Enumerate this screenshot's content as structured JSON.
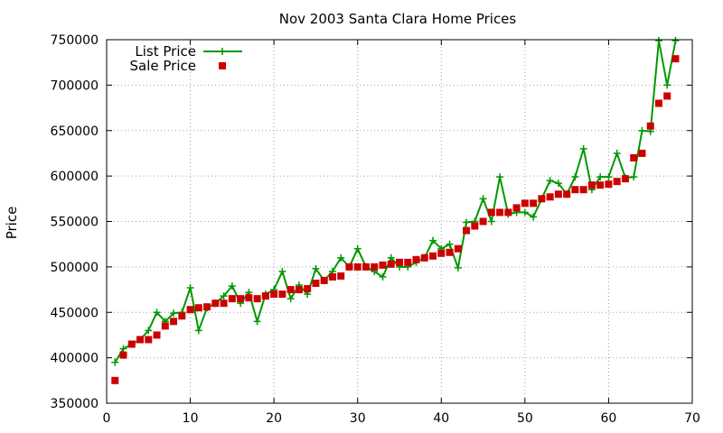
{
  "chart_data": {
    "type": "line",
    "title": "Nov 2003 Santa Clara Home Prices",
    "xlabel": "",
    "ylabel": "Price",
    "xlim": [
      0,
      70
    ],
    "ylim": [
      350000,
      750000
    ],
    "xticks": [
      0,
      10,
      20,
      30,
      40,
      50,
      60,
      70
    ],
    "yticks": [
      350000,
      400000,
      450000,
      500000,
      550000,
      600000,
      650000,
      700000,
      750000
    ],
    "grid": true,
    "legend_position": "top-left",
    "series": [
      {
        "name": "List Price",
        "style": "line-plus",
        "color": "#009900",
        "x": [
          1,
          2,
          3,
          4,
          5,
          6,
          7,
          8,
          9,
          10,
          11,
          12,
          13,
          14,
          15,
          16,
          17,
          18,
          19,
          20,
          21,
          22,
          23,
          24,
          25,
          26,
          27,
          28,
          29,
          30,
          31,
          32,
          33,
          34,
          35,
          36,
          37,
          38,
          39,
          40,
          41,
          42,
          43,
          44,
          45,
          46,
          47,
          48,
          49,
          50,
          51,
          52,
          53,
          54,
          55,
          56,
          57,
          58,
          59,
          60,
          61,
          62,
          63,
          64,
          65,
          66,
          67,
          68
        ],
        "y": [
          395000,
          410000,
          415000,
          420000,
          430000,
          450000,
          440000,
          449000,
          450000,
          477000,
          430000,
          455000,
          460000,
          468000,
          479000,
          460000,
          472000,
          440000,
          470000,
          475000,
          495000,
          465000,
          480000,
          470000,
          498000,
          485000,
          495000,
          510000,
          500000,
          520000,
          500000,
          495000,
          489000,
          510000,
          500000,
          500000,
          505000,
          510000,
          529000,
          520000,
          525000,
          499000,
          549000,
          550000,
          575000,
          550000,
          599000,
          558000,
          560000,
          560000,
          555000,
          575000,
          595000,
          592000,
          580000,
          599000,
          630000,
          585000,
          599000,
          599000,
          625000,
          598000,
          599000,
          650000,
          649000,
          749000,
          700000,
          749000
        ]
      },
      {
        "name": "Sale Price",
        "style": "points-square",
        "color": "#cc0000",
        "x": [
          1,
          2,
          3,
          4,
          5,
          6,
          7,
          8,
          9,
          10,
          11,
          12,
          13,
          14,
          15,
          16,
          17,
          18,
          19,
          20,
          21,
          22,
          23,
          24,
          25,
          26,
          27,
          28,
          29,
          30,
          31,
          32,
          33,
          34,
          35,
          36,
          37,
          38,
          39,
          40,
          41,
          42,
          43,
          44,
          45,
          46,
          47,
          48,
          49,
          50,
          51,
          52,
          53,
          54,
          55,
          56,
          57,
          58,
          59,
          60,
          61,
          62,
          63,
          64,
          65,
          66,
          67,
          68
        ],
        "y": [
          375000,
          403000,
          415000,
          420000,
          420000,
          425000,
          435000,
          440000,
          446000,
          453000,
          455000,
          456000,
          460000,
          460000,
          465000,
          465000,
          466000,
          465000,
          468000,
          470000,
          470000,
          475000,
          475000,
          476000,
          482000,
          485000,
          489000,
          490000,
          500000,
          500000,
          500000,
          500000,
          502000,
          503000,
          505000,
          505000,
          508000,
          510000,
          512000,
          515000,
          516000,
          520000,
          540000,
          545000,
          550000,
          560000,
          560000,
          560000,
          565000,
          570000,
          570000,
          575000,
          577000,
          580000,
          580000,
          585000,
          585000,
          590000,
          590000,
          591000,
          594000,
          597000,
          620000,
          625000,
          655000,
          680000,
          688000,
          729000
        ]
      }
    ]
  }
}
